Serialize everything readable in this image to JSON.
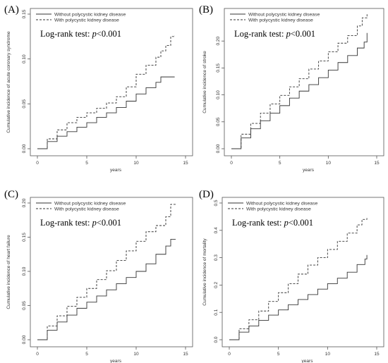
{
  "figure": {
    "style": {
      "solid_color": "#333333",
      "dashed_color": "#333333",
      "dash_pattern": "3,2"
    }
  },
  "chart_data": [
    {
      "type": "line",
      "panel_label": "(A)",
      "xlabel": "years",
      "ylabel": "Cumulative incidence of acute coronary syndrome",
      "xlim": [
        0,
        15
      ],
      "ylim": [
        0,
        0.15
      ],
      "xticks": [
        "0",
        "5",
        "10",
        "15"
      ],
      "yticks": [
        "0.00",
        "0.05",
        "0.10",
        "0.15"
      ],
      "legend": {
        "placement": "top-left"
      },
      "annotation": {
        "prefix": "Log-rank test: ",
        "p": "p",
        "suffix": "<0.001"
      },
      "series": [
        {
          "name": "Without polycystic kidney disease",
          "style": "solid",
          "x": [
            0,
            1,
            2,
            3,
            4,
            5,
            6,
            7,
            8,
            9,
            10,
            11,
            12,
            12.5,
            13,
            13.9
          ],
          "y": [
            0,
            0.008,
            0.014,
            0.019,
            0.024,
            0.029,
            0.035,
            0.04,
            0.046,
            0.053,
            0.061,
            0.068,
            0.074,
            0.08,
            0.08,
            0.08
          ]
        },
        {
          "name": "With polycystic kidney disease",
          "style": "dashed",
          "x": [
            0,
            1,
            2,
            3,
            4,
            5,
            6,
            7,
            8,
            9,
            10,
            11,
            12,
            12.5,
            13,
            13.5,
            13.9
          ],
          "y": [
            0,
            0.011,
            0.021,
            0.029,
            0.035,
            0.04,
            0.045,
            0.051,
            0.058,
            0.069,
            0.083,
            0.093,
            0.102,
            0.109,
            0.115,
            0.125,
            0.126
          ]
        }
      ]
    },
    {
      "type": "line",
      "panel_label": "(B)",
      "xlabel": "years",
      "ylabel": "Cumulative incidence of stroke",
      "xlim": [
        0,
        15
      ],
      "ylim": [
        0,
        0.25
      ],
      "xticks": [
        "0",
        "5",
        "10",
        "15"
      ],
      "yticks": [
        "0.00",
        "0.05",
        "0.10",
        "0.15",
        "0.20"
      ],
      "legend": {
        "placement": "top-left"
      },
      "annotation": {
        "prefix": "Log-rank test: ",
        "p": "p",
        "suffix": "<0.001"
      },
      "series": [
        {
          "name": "Without polycystic kidney disease",
          "style": "solid",
          "x": [
            0,
            1,
            2,
            3,
            4,
            5,
            6,
            7,
            8,
            9,
            10,
            11,
            12,
            13,
            13.7,
            14
          ],
          "y": [
            0,
            0.02,
            0.037,
            0.052,
            0.066,
            0.08,
            0.094,
            0.107,
            0.119,
            0.132,
            0.146,
            0.16,
            0.173,
            0.187,
            0.198,
            0.215
          ]
        },
        {
          "name": "With polycystic kidney disease",
          "style": "dashed",
          "x": [
            0,
            1,
            2,
            3,
            4,
            5,
            6,
            7,
            8,
            9,
            10,
            11,
            12,
            13,
            13.5,
            14
          ],
          "y": [
            0,
            0.027,
            0.047,
            0.066,
            0.083,
            0.099,
            0.115,
            0.13,
            0.148,
            0.163,
            0.18,
            0.196,
            0.21,
            0.228,
            0.243,
            0.252
          ]
        }
      ]
    },
    {
      "type": "line",
      "panel_label": "(C)",
      "xlabel": "years",
      "ylabel": "Cumulative incidence of heart failure",
      "xlim": [
        0,
        15
      ],
      "ylim": [
        0,
        0.2
      ],
      "xticks": [
        "0",
        "5",
        "10",
        "15"
      ],
      "yticks": [
        "0.00",
        "0.05",
        "0.10",
        "0.15",
        "0.20"
      ],
      "legend": {
        "placement": "top-left"
      },
      "annotation": {
        "prefix": "Log-rank test: ",
        "p": "p",
        "suffix": "<0.001"
      },
      "series": [
        {
          "name": "Without polycystic kidney disease",
          "style": "solid",
          "x": [
            0,
            1,
            2,
            3,
            4,
            5,
            6,
            7,
            8,
            9,
            10,
            11,
            12,
            13,
            13.5,
            14
          ],
          "y": [
            0,
            0.014,
            0.026,
            0.036,
            0.046,
            0.055,
            0.064,
            0.073,
            0.082,
            0.091,
            0.1,
            0.111,
            0.125,
            0.137,
            0.147,
            0.147
          ]
        },
        {
          "name": "With polycystic kidney disease",
          "style": "dashed",
          "x": [
            0,
            1,
            2,
            3,
            4,
            5,
            6,
            7,
            8,
            9,
            10,
            11,
            12,
            13,
            13.5,
            14
          ],
          "y": [
            0,
            0.02,
            0.035,
            0.049,
            0.062,
            0.075,
            0.088,
            0.101,
            0.116,
            0.13,
            0.144,
            0.158,
            0.167,
            0.18,
            0.198,
            0.198
          ]
        }
      ]
    },
    {
      "type": "line",
      "panel_label": "(D)",
      "xlabel": "years",
      "ylabel": "Cumulative incidence of mortality",
      "xlim": [
        0,
        15
      ],
      "ylim": [
        0,
        0.5
      ],
      "xticks": [
        "0",
        "5",
        "10",
        "15"
      ],
      "yticks": [
        "0.0",
        "0.1",
        "0.2",
        "0.3",
        "0.4",
        "0.5"
      ],
      "legend": {
        "placement": "top-left"
      },
      "annotation": {
        "prefix": "Log-rank test: ",
        "p": "p",
        "suffix": "<0.001"
      },
      "series": [
        {
          "name": "Without polycystic kidney disease",
          "style": "solid",
          "x": [
            0,
            1,
            2,
            3,
            4,
            5,
            6,
            7,
            8,
            9,
            10,
            11,
            12,
            13,
            13.8,
            14
          ],
          "y": [
            0,
            0.028,
            0.05,
            0.071,
            0.09,
            0.109,
            0.128,
            0.147,
            0.165,
            0.185,
            0.205,
            0.225,
            0.247,
            0.275,
            0.295,
            0.31
          ]
        },
        {
          "name": "With polycystic kidney disease",
          "style": "dashed",
          "x": [
            0,
            1,
            2,
            3,
            4,
            5,
            6,
            7,
            8,
            9,
            10,
            11,
            12,
            13,
            13.5,
            14
          ],
          "y": [
            0,
            0.04,
            0.073,
            0.105,
            0.14,
            0.172,
            0.205,
            0.24,
            0.273,
            0.3,
            0.33,
            0.36,
            0.39,
            0.42,
            0.44,
            0.445
          ]
        }
      ]
    }
  ]
}
